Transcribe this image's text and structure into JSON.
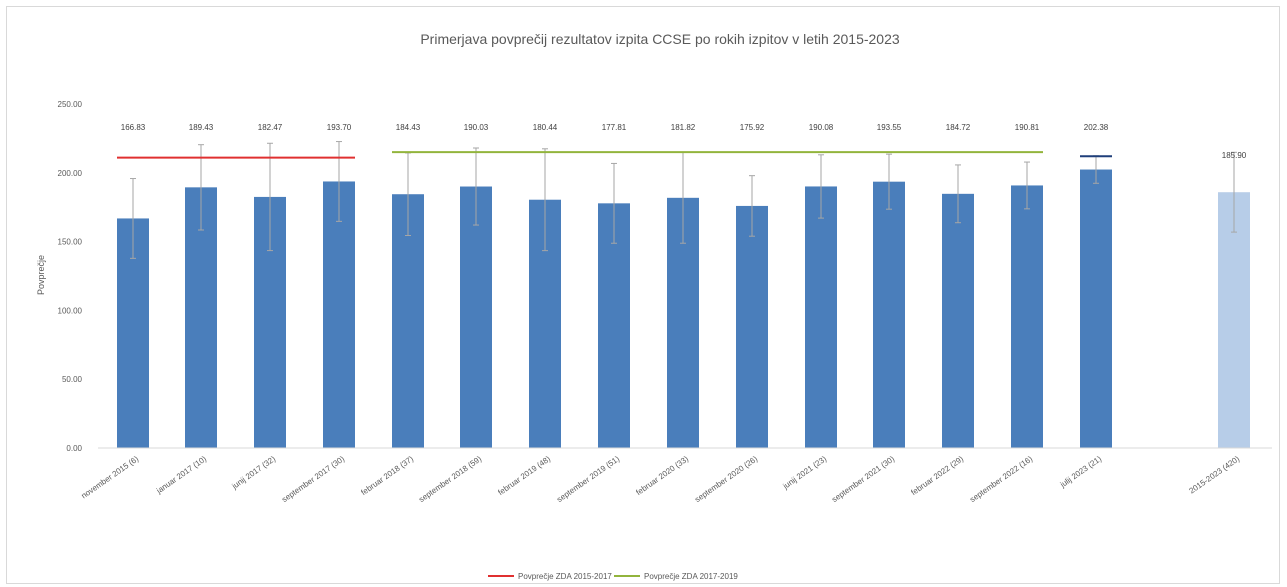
{
  "chart_data": {
    "type": "bar",
    "title": "Primerjava povprečij rezultatov izpita CCSE po rokih izpitov v letih 2015-2023",
    "ylabel": "Povprečje",
    "xlabel": "",
    "ylim": [
      0,
      250
    ],
    "yticks": [
      "0.00",
      "50.00",
      "100.00",
      "150.00",
      "200.00",
      "250.00"
    ],
    "grid": false,
    "legend_position": "bottom",
    "colors": {
      "bar": "#4a7ebb",
      "bar_total": "#b7cde8",
      "error": "#a6a6a6",
      "line_2015_2017": "#e03030",
      "line_2017_2019": "#92b43c",
      "line_2023": "#1f3f7a"
    },
    "categories": [
      "november 2015 (6)",
      "januar 2017 (10)",
      "junij 2017 (32)",
      "september 2017 (30)",
      "februar 2018 (37)",
      "september 2018 (59)",
      "februar 2019 (48)",
      "september 2019 (51)",
      "februar 2020 (33)",
      "september 2020 (26)",
      "junij 2021 (23)",
      "september 2021 (30)",
      "februar 2022 (29)",
      "september 2022 (16)",
      "julij 2023 (21)",
      "2015-2023 (420)"
    ],
    "values": [
      166.83,
      189.43,
      182.47,
      193.7,
      184.43,
      190.03,
      180.44,
      177.81,
      181.82,
      175.92,
      190.08,
      193.55,
      184.72,
      190.81,
      202.38,
      185.9
    ],
    "data_labels": [
      "166.83",
      "189.43",
      "182.47",
      "193.70",
      "184.43",
      "190.03",
      "180.44",
      "177.81",
      "181.82",
      "175.92",
      "190.08",
      "193.55",
      "184.72",
      "190.81",
      "202.38",
      "185.90"
    ],
    "error_plus_minus": [
      29,
      31,
      39,
      29,
      30,
      28,
      37,
      29,
      33,
      22,
      23,
      20,
      21,
      17,
      10,
      29
    ],
    "reference_lines": [
      {
        "name": "Povprečje ZDA 2015-2017",
        "value": 211,
        "from": 0,
        "to": 3
      },
      {
        "name": "Povprečje ZDA 2017-2019",
        "value": 215,
        "from": 4,
        "to": 13
      },
      {
        "name": "",
        "value": 212,
        "from": 14,
        "to": 14
      }
    ],
    "legend": [
      "Povprečje ZDA 2015-2017",
      "Povprečje ZDA 2017-2019"
    ]
  }
}
